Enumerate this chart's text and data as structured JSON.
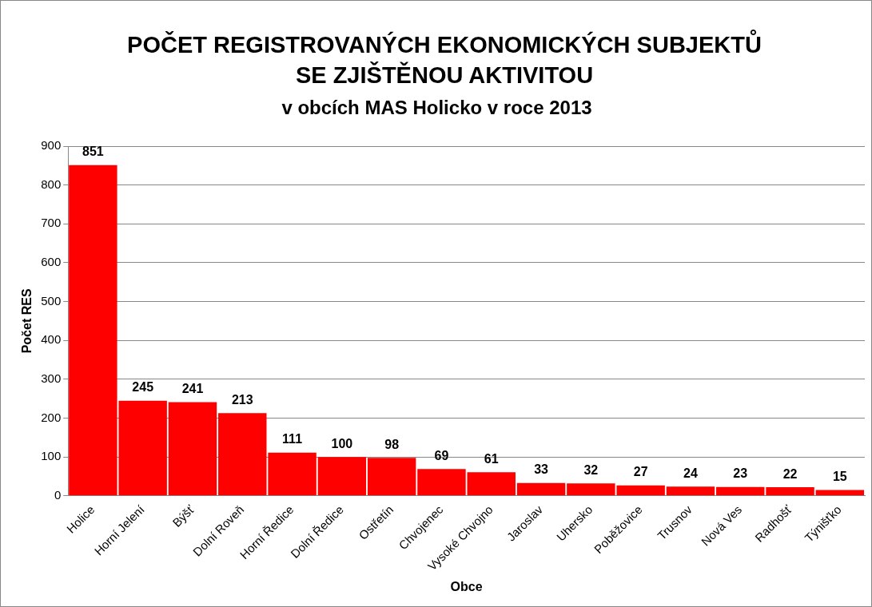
{
  "chart_data": {
    "type": "bar",
    "title": "POČET REGISTROVANÝCH EKONOMICKÝCH SUBJEKTŮ SE ZJIŠTĚNOU AKTIVITOU",
    "subtitle": "v obcích MAS Holicko v roce 2013",
    "xlabel": "Obce",
    "ylabel": "Počet RES",
    "categories": [
      "Holice",
      "Horní Jelení",
      "Býšť",
      "Dolní Roveň",
      "Horní Ředice",
      "Dolní Ředice",
      "Ostřetín",
      "Chvojenec",
      "Vysoké Chvojno",
      "Jaroslav",
      "Uhersko",
      "Poběžovice",
      "Trusnov",
      "Nová Ves",
      "Radhošť",
      "Týnišťko"
    ],
    "values": [
      851,
      245,
      241,
      213,
      111,
      100,
      98,
      69,
      61,
      33,
      32,
      27,
      24,
      23,
      22,
      15
    ],
    "color": "#ff0000",
    "ylim": [
      0,
      900
    ],
    "yticks": [
      0,
      100,
      200,
      300,
      400,
      500,
      600,
      700,
      800,
      900
    ],
    "grid": "y",
    "data_labels": true
  }
}
